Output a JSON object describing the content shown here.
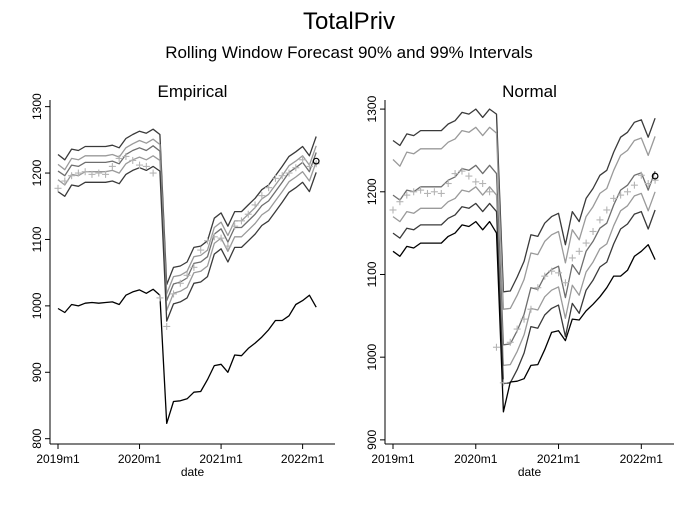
{
  "title": "TotalPriv",
  "subtitle": "Rolling Window Forecast 90% and 99% Intervals",
  "chart_data": [
    {
      "type": "line",
      "title": "Empirical",
      "xlabel": "date",
      "ylabel": "",
      "xticks": [
        "2019m1",
        "2020m1",
        "2021m1",
        "2022m1"
      ],
      "yticks": [
        800,
        900,
        1000,
        1100,
        1200,
        1300
      ],
      "ylim": [
        792,
        1310
      ],
      "xlim": [
        "2019m1",
        "2022m4"
      ],
      "grid": false,
      "legend": "none",
      "x": [
        "2019m1",
        "2019m2",
        "2019m3",
        "2019m4",
        "2019m5",
        "2019m6",
        "2019m7",
        "2019m8",
        "2019m9",
        "2019m10",
        "2019m11",
        "2019m12",
        "2020m1",
        "2020m2",
        "2020m3",
        "2020m4",
        "2020m5",
        "2020m6",
        "2020m7",
        "2020m8",
        "2020m9",
        "2020m10",
        "2020m11",
        "2020m12",
        "2021m1",
        "2021m2",
        "2021m3",
        "2021m4",
        "2021m5",
        "2021m6",
        "2021m7",
        "2021m8",
        "2021m9",
        "2021m10",
        "2021m11",
        "2021m12",
        "2022m1",
        "2022m2",
        "2022m3"
      ],
      "series": [
        {
          "color": "#3a3a3a",
          "values": [
            1228,
            1220,
            1236,
            1234,
            1240,
            1240,
            1240,
            1240,
            1242,
            1238,
            1252,
            1258,
            1263,
            1260,
            1266,
            1258,
            1032,
            1058,
            1060,
            1066,
            1088,
            1090,
            1098,
            1132,
            1140,
            1120,
            1142,
            1142,
            1152,
            1162,
            1175,
            1182,
            1196,
            1210,
            1225,
            1232,
            1240,
            1226,
            1255
          ]
        },
        {
          "color": "#9a9a9a",
          "values": [
            1213,
            1205,
            1222,
            1220,
            1226,
            1226,
            1226,
            1226,
            1228,
            1224,
            1238,
            1244,
            1249,
            1245,
            1251,
            1243,
            1018,
            1044,
            1046,
            1052,
            1074,
            1076,
            1084,
            1118,
            1126,
            1106,
            1128,
            1128,
            1138,
            1148,
            1161,
            1168,
            1182,
            1196,
            1211,
            1218,
            1226,
            1212,
            1241
          ]
        },
        {
          "color": "#6e6e6e",
          "values": [
            1203,
            1196,
            1212,
            1210,
            1216,
            1216,
            1216,
            1216,
            1218,
            1214,
            1228,
            1234,
            1238,
            1234,
            1241,
            1233,
            1008,
            1033,
            1036,
            1042,
            1064,
            1066,
            1074,
            1108,
            1116,
            1096,
            1118,
            1118,
            1128,
            1138,
            1151,
            1158,
            1172,
            1186,
            1201,
            1208,
            1216,
            1202,
            1231
          ]
        },
        {
          "color": "#9a9a9a",
          "values": [
            1190,
            1182,
            1198,
            1196,
            1202,
            1202,
            1202,
            1202,
            1204,
            1200,
            1214,
            1220,
            1224,
            1220,
            1226,
            1219,
            993,
            1019,
            1022,
            1028,
            1050,
            1052,
            1060,
            1094,
            1102,
            1082,
            1104,
            1104,
            1114,
            1124,
            1137,
            1144,
            1158,
            1172,
            1187,
            1194,
            1202,
            1188,
            1217
          ]
        },
        {
          "color": "#3a3a3a",
          "values": [
            1172,
            1165,
            1182,
            1180,
            1186,
            1186,
            1186,
            1186,
            1188,
            1184,
            1198,
            1204,
            1208,
            1204,
            1210,
            1203,
            977,
            1003,
            1006,
            1012,
            1034,
            1036,
            1044,
            1078,
            1086,
            1066,
            1088,
            1088,
            1098,
            1108,
            1121,
            1128,
            1142,
            1156,
            1171,
            1178,
            1186,
            1172,
            1201
          ]
        },
        {
          "color": "#000000",
          "values": [
            996,
            990,
            1002,
            1000,
            1004,
            1005,
            1004,
            1005,
            1006,
            1002,
            1016,
            1021,
            1024,
            1019,
            1025,
            1016,
            823,
            856,
            857,
            860,
            870,
            871,
            889,
            910,
            912,
            900,
            926,
            925,
            936,
            944,
            953,
            964,
            978,
            978,
            985,
            1002,
            1008,
            1016,
            998
          ]
        }
      ],
      "markers": {
        "symbol": "+",
        "color": "#b4b4b4",
        "values": [
          1177,
          1188,
          1196,
          1200,
          1202,
          1198,
          1200,
          1198,
          1210,
          1222,
          1225,
          1219,
          1212,
          1210,
          1200,
          1012,
          969,
          1018,
          1034,
          1046,
          1058,
          1084,
          1098,
          1104,
          1102,
          1090,
          1120,
          1128,
          1138,
          1152,
          1166,
          1178,
          1192,
          1196,
          1200,
          1208,
          1220,
          1210,
          1214
        ]
      },
      "last_point": {
        "symbol": "o",
        "value": 1218
      }
    },
    {
      "type": "line",
      "title": "Normal",
      "xlabel": "date",
      "ylabel": "",
      "xticks": [
        "2019m1",
        "2020m1",
        "2021m1",
        "2022m1"
      ],
      "yticks": [
        900,
        1000,
        1100,
        1200,
        1300
      ],
      "ylim": [
        895,
        1311
      ],
      "xlim": [
        "2019m1",
        "2022m4"
      ],
      "grid": false,
      "legend": "none",
      "x": [
        "2019m1",
        "2019m2",
        "2019m3",
        "2019m4",
        "2019m5",
        "2019m6",
        "2019m7",
        "2019m8",
        "2019m9",
        "2019m10",
        "2019m11",
        "2019m12",
        "2020m1",
        "2020m2",
        "2020m3",
        "2020m4",
        "2020m5",
        "2020m6",
        "2020m7",
        "2020m8",
        "2020m9",
        "2020m10",
        "2020m11",
        "2020m12",
        "2021m1",
        "2021m2",
        "2021m3",
        "2021m4",
        "2021m5",
        "2021m6",
        "2021m7",
        "2021m8",
        "2021m9",
        "2021m10",
        "2021m11",
        "2021m12",
        "2022m1",
        "2022m2",
        "2022m3"
      ],
      "series": [
        {
          "color": "#3a3a3a",
          "values": [
            1262,
            1256,
            1270,
            1268,
            1274,
            1274,
            1274,
            1274,
            1282,
            1286,
            1296,
            1294,
            1300,
            1290,
            1300,
            1294,
            1079,
            1080,
            1097,
            1116,
            1148,
            1146,
            1162,
            1170,
            1174,
            1136,
            1176,
            1164,
            1192,
            1204,
            1220,
            1226,
            1248,
            1266,
            1272,
            1284,
            1287,
            1266,
            1289
          ]
        },
        {
          "color": "#9a9a9a",
          "values": [
            1239,
            1231,
            1248,
            1246,
            1252,
            1252,
            1252,
            1252,
            1260,
            1264,
            1274,
            1272,
            1278,
            1268,
            1278,
            1271,
            1058,
            1059,
            1075,
            1094,
            1126,
            1124,
            1140,
            1148,
            1152,
            1114,
            1154,
            1142,
            1170,
            1182,
            1198,
            1204,
            1226,
            1244,
            1250,
            1262,
            1265,
            1244,
            1267
          ]
        },
        {
          "color": "#6e6e6e",
          "values": [
            1196,
            1190,
            1202,
            1200,
            1206,
            1206,
            1206,
            1206,
            1214,
            1218,
            1228,
            1226,
            1232,
            1222,
            1232,
            1222,
            1015,
            1016,
            1032,
            1052,
            1084,
            1082,
            1098,
            1106,
            1110,
            1072,
            1112,
            1100,
            1128,
            1140,
            1156,
            1162,
            1184,
            1202,
            1208,
            1220,
            1223,
            1202,
            1225
          ]
        },
        {
          "color": "#9a9a9a",
          "values": [
            1170,
            1164,
            1176,
            1174,
            1180,
            1180,
            1180,
            1180,
            1188,
            1192,
            1202,
            1200,
            1206,
            1196,
            1206,
            1196,
            990,
            991,
            1007,
            1027,
            1059,
            1057,
            1073,
            1081,
            1085,
            1047,
            1087,
            1075,
            1103,
            1115,
            1131,
            1137,
            1159,
            1177,
            1183,
            1195,
            1198,
            1177,
            1200
          ]
        },
        {
          "color": "#3a3a3a",
          "values": [
            1150,
            1144,
            1156,
            1154,
            1160,
            1160,
            1160,
            1160,
            1168,
            1172,
            1182,
            1180,
            1186,
            1176,
            1186,
            1176,
            968,
            969,
            985,
            1005,
            1037,
            1035,
            1051,
            1059,
            1063,
            1025,
            1065,
            1053,
            1081,
            1093,
            1109,
            1115,
            1137,
            1155,
            1161,
            1173,
            1176,
            1155,
            1178
          ]
        },
        {
          "color": "#000000",
          "values": [
            1128,
            1122,
            1134,
            1132,
            1138,
            1138,
            1138,
            1138,
            1146,
            1150,
            1160,
            1158,
            1164,
            1154,
            1164,
            1150,
            934,
            970,
            971,
            974,
            990,
            991,
            1009,
            1030,
            1032,
            1020,
            1046,
            1045,
            1056,
            1064,
            1073,
            1084,
            1098,
            1098,
            1105,
            1122,
            1128,
            1136,
            1118
          ]
        }
      ],
      "markers": {
        "symbol": "+",
        "color": "#b4b4b4",
        "values": [
          1178,
          1188,
          1196,
          1200,
          1202,
          1198,
          1200,
          1198,
          1210,
          1222,
          1225,
          1219,
          1212,
          1210,
          1200,
          1012,
          969,
          1018,
          1034,
          1046,
          1058,
          1084,
          1098,
          1104,
          1102,
          1090,
          1120,
          1128,
          1138,
          1152,
          1166,
          1178,
          1192,
          1196,
          1200,
          1208,
          1220,
          1210,
          1214
        ]
      },
      "last_point": {
        "symbol": "o",
        "value": 1219
      }
    }
  ]
}
